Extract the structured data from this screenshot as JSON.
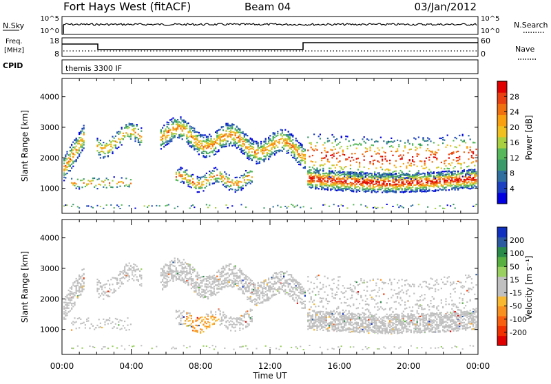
{
  "header": {
    "station": "Fort Hays West (fitACF)",
    "beam": "Beam 04",
    "date": "03/Jan/2012"
  },
  "strip": {
    "nsky_label": "N.Sky",
    "nsearch_label": "N.Search",
    "freq_label_1": "Freq.",
    "freq_label_2": "[MHz]",
    "nave_label": "Nave",
    "cpid_label": "CPID",
    "noise_ticks": [
      "10^5",
      "10^0"
    ],
    "freq_ticks": [
      "18",
      "8"
    ],
    "nave_ticks": [
      "60",
      "0"
    ],
    "cpid_text": "themis 3300 IF"
  },
  "chart_data": [
    {
      "type": "heatmap",
      "name": "power",
      "ylabel": "Slant Range [km]",
      "ylim": [
        180,
        4600
      ],
      "yticks": [
        "4000",
        "3000",
        "2000",
        "1000"
      ],
      "xlim_hours": [
        0,
        24
      ],
      "colorbar_label": "Power [dB]",
      "colorbar_ticks": [
        "28",
        "24",
        "20",
        "16",
        "12",
        "8",
        "4"
      ],
      "colors": [
        "#0000e0",
        "#1a3fc0",
        "#2f6fa0",
        "#3a9a6a",
        "#56b85a",
        "#a8d040",
        "#f0c020",
        "#f8a010",
        "#f07010",
        "#e84010",
        "#e00000"
      ]
    },
    {
      "type": "heatmap",
      "name": "velocity",
      "ylabel": "Slant Range [km]",
      "ylim": [
        180,
        4600
      ],
      "yticks": [
        "4000",
        "3000",
        "2000",
        "1000"
      ],
      "xlim_hours": [
        0,
        24
      ],
      "colorbar_label": "Velocity [m s⁻¹]",
      "colorbar_ticks": [
        "200",
        "100",
        "50",
        "15",
        "-15",
        "-50",
        "-100",
        "-200"
      ],
      "colors": [
        "#e00000",
        "#f03000",
        "#f86010",
        "#f89020",
        "#f8b830",
        "#c0c0c0",
        "#c0c0c0",
        "#9ad060",
        "#58b040",
        "#2a8a4a",
        "#2c5aa0",
        "#1030c0"
      ]
    }
  ],
  "time_axis": {
    "labels": [
      "00:00",
      "04:00",
      "08:00",
      "12:00",
      "16:00",
      "20:00",
      "00:00"
    ],
    "xlabel": "Time UT"
  }
}
